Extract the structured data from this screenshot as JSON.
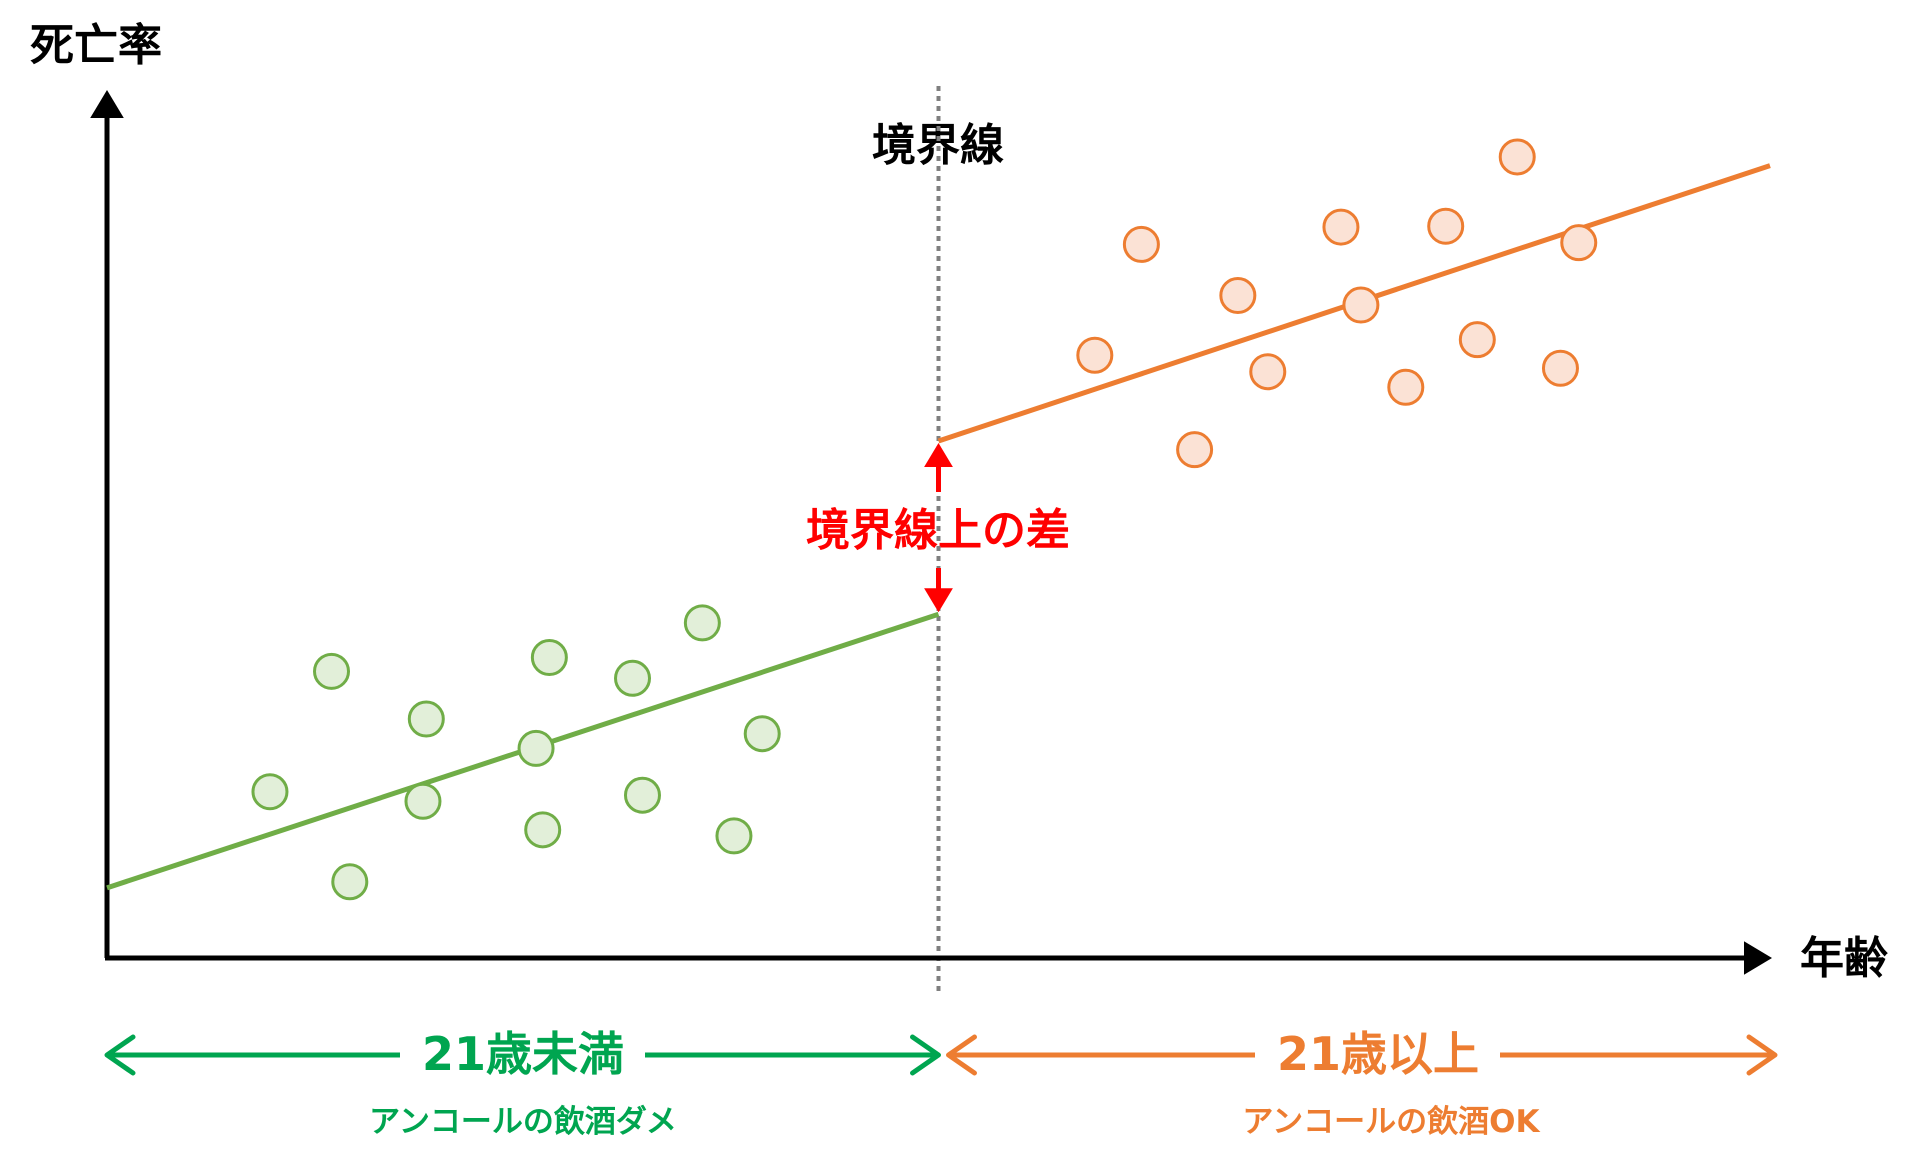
{
  "chart_data": {
    "type": "scatter",
    "title": "",
    "ylabel": "死亡率",
    "xlabel": "年齢",
    "xlim": [
      0,
      100
    ],
    "ylim": [
      0,
      100
    ],
    "grid": false,
    "threshold": {
      "x": 50,
      "label": "境界線"
    },
    "gap_label": "境界線上の差",
    "series": [
      {
        "name": "21歳未満",
        "sublabel": "アンコールの飲酒ダメ",
        "color": "#70ad47",
        "fill": "#e2efd9",
        "label_color": "#00a550",
        "points": [
          [
            13.5,
            33.1
          ],
          [
            9.8,
            19.2
          ],
          [
            14.6,
            8.8
          ],
          [
            19.2,
            27.6
          ],
          [
            19.0,
            18.1
          ],
          [
            25.8,
            24.2
          ],
          [
            26.6,
            34.7
          ],
          [
            26.2,
            14.8
          ],
          [
            31.6,
            32.3
          ],
          [
            32.2,
            18.8
          ],
          [
            35.8,
            38.7
          ],
          [
            39.4,
            25.9
          ],
          [
            37.7,
            14.1
          ]
        ],
        "fit": [
          [
            0,
            8.1
          ],
          [
            50,
            39.7
          ]
        ],
        "range": [
          0,
          50
        ]
      },
      {
        "name": "21歳以上",
        "sublabel": "アンコールの飲酒OK",
        "color": "#ed7d31",
        "fill": "#fbe2d5",
        "label_color": "#ed7d31",
        "points": [
          [
            62.2,
            82.4
          ],
          [
            59.4,
            69.6
          ],
          [
            65.4,
            58.7
          ],
          [
            68.0,
            76.5
          ],
          [
            69.8,
            67.7
          ],
          [
            74.2,
            84.4
          ],
          [
            75.4,
            75.4
          ],
          [
            78.1,
            65.9
          ],
          [
            80.5,
            84.5
          ],
          [
            82.4,
            71.4
          ],
          [
            84.8,
            92.5
          ],
          [
            88.5,
            82.6
          ],
          [
            87.4,
            68.1
          ]
        ],
        "fit": [
          [
            50,
            59.7
          ],
          [
            100,
            91.5
          ]
        ],
        "range": [
          50,
          100
        ]
      }
    ],
    "gap_color": "#ff0000"
  }
}
